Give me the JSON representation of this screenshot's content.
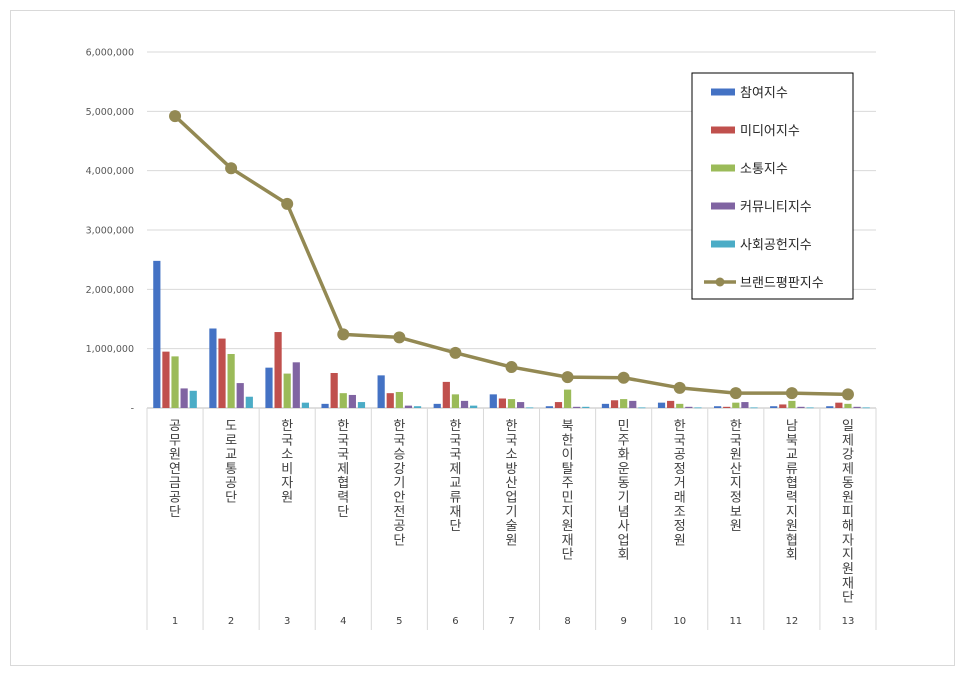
{
  "chart_data": {
    "type": "bar",
    "title": "",
    "xlabel": "",
    "ylabel": "",
    "ylim": [
      0,
      6000000
    ],
    "yticks": [
      "-",
      "1,000,000",
      "2,000,000",
      "3,000,000",
      "4,000,000",
      "5,000,000",
      "6,000,000"
    ],
    "grid": true,
    "legend_position": "top-right",
    "categories": [
      "1",
      "2",
      "3",
      "4",
      "5",
      "6",
      "7",
      "8",
      "9",
      "10",
      "11",
      "12",
      "13"
    ],
    "category_names": [
      "공무원연금공단",
      "도로교통공단",
      "한국소비자원",
      "한국국제협력단",
      "한국승강기안전공단",
      "한국국제교류재단",
      "한국소방산업기술원",
      "북한이탈주민지원재단",
      "민주화운동기념사업회",
      "한국공정거래조정원",
      "한국원산지정보원",
      "남북교류협력지원협회",
      "일제강제동원피해자지원재단"
    ],
    "series": [
      {
        "name": "참여지수",
        "type": "bar",
        "color": "#4472c4",
        "values": [
          2480000,
          1340000,
          680000,
          70000,
          550000,
          70000,
          230000,
          30000,
          70000,
          90000,
          30000,
          30000,
          30000
        ]
      },
      {
        "name": "미디어지수",
        "type": "bar",
        "color": "#c0504d",
        "values": [
          950000,
          1170000,
          1280000,
          590000,
          250000,
          440000,
          160000,
          100000,
          130000,
          120000,
          20000,
          60000,
          90000
        ]
      },
      {
        "name": "소통지수",
        "type": "bar",
        "color": "#9bbb59",
        "values": [
          870000,
          910000,
          580000,
          250000,
          270000,
          230000,
          150000,
          310000,
          150000,
          70000,
          90000,
          120000,
          70000
        ]
      },
      {
        "name": "커뮤니티지수",
        "type": "bar",
        "color": "#8064a2",
        "values": [
          330000,
          420000,
          770000,
          220000,
          40000,
          120000,
          100000,
          20000,
          120000,
          20000,
          100000,
          20000,
          20000
        ]
      },
      {
        "name": "사회공헌지수",
        "type": "bar",
        "color": "#4bacc6",
        "values": [
          290000,
          190000,
          90000,
          100000,
          30000,
          40000,
          10000,
          20000,
          10000,
          10000,
          10000,
          10000,
          10000
        ]
      },
      {
        "name": "브랜드평판지수",
        "type": "line",
        "color": "#938953",
        "values": [
          4920000,
          4040000,
          3440000,
          1240000,
          1190000,
          930000,
          690000,
          520000,
          510000,
          340000,
          250000,
          250000,
          230000
        ]
      }
    ]
  }
}
